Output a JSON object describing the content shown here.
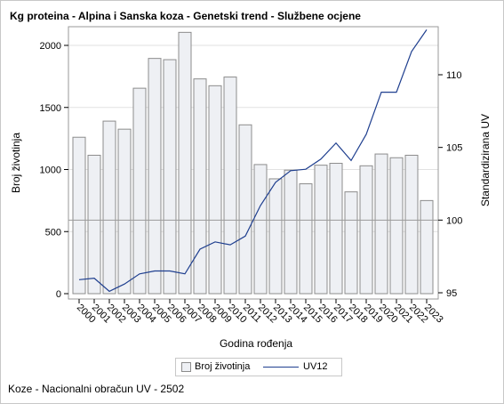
{
  "title": "Kg proteina - Alpina i Sanska koza - Genetski trend - Službene ocjene",
  "footnote": "Koze - Nacionalni obračun UV - 2502",
  "colors": {
    "bar_fill": "#eef0f4",
    "bar_stroke": "#8c8c8c",
    "line": "#1f3f8f",
    "grid": "#e2e2e2",
    "axis": "#9a9a9a",
    "refline": "#9a9a9a"
  },
  "chart_data": {
    "type": "bar",
    "title": "Kg proteina - Alpina i Sanska koza - Genetski trend - Službene ocjene",
    "xlabel": "Godina rođenja",
    "ylabel": "Broj životinja",
    "y2label": "Standardizirana UV",
    "categories": [
      "2000",
      "2001",
      "2002",
      "2003",
      "2004",
      "2005",
      "2006",
      "2007",
      "2008",
      "2009",
      "2010",
      "2011",
      "2012",
      "2013",
      "2014",
      "2015",
      "2016",
      "2017",
      "2018",
      "2019",
      "2020",
      "2021",
      "2022",
      "2023"
    ],
    "series": [
      {
        "name": "Broj životinja",
        "axis": "left",
        "type": "bar",
        "values": [
          1260,
          1115,
          1390,
          1325,
          1655,
          1895,
          1885,
          2105,
          1730,
          1675,
          1745,
          1360,
          1040,
          925,
          995,
          885,
          1035,
          1050,
          820,
          1030,
          1125,
          1095,
          1115,
          750
        ]
      },
      {
        "name": "UV12",
        "axis": "right",
        "type": "line",
        "values": [
          95.9,
          96.0,
          95.1,
          95.6,
          96.3,
          96.5,
          96.5,
          96.3,
          98.0,
          98.5,
          98.3,
          98.9,
          101.0,
          102.6,
          103.4,
          103.5,
          104.2,
          105.3,
          104.1,
          105.9,
          108.8,
          108.8,
          111.6,
          113.1
        ]
      }
    ],
    "ylim": [
      0,
      2200
    ],
    "yticks": [
      0,
      500,
      1000,
      1500,
      2000
    ],
    "y2lim": [
      94.6,
      113.7
    ],
    "y2ticks": [
      95,
      100,
      105,
      110
    ],
    "reference_line_y2": 100,
    "grid": true,
    "legend": "bottom-center"
  }
}
